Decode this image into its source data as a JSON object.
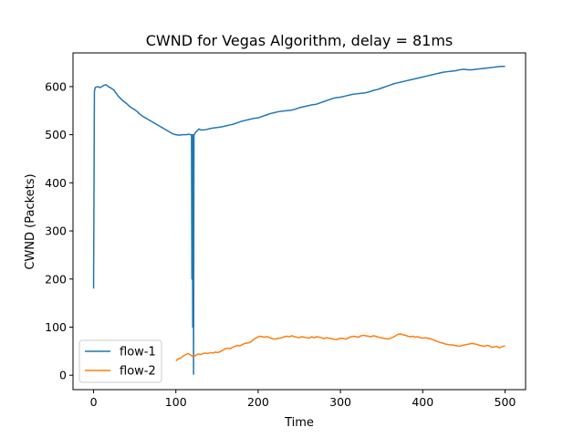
{
  "chart_data": {
    "type": "line",
    "title": "CWND for Vegas Algorithm, delay = 81ms",
    "xlabel": "Time",
    "ylabel": "CWND (Packets)",
    "xlim": [
      -25,
      525
    ],
    "ylim": [
      -30,
      670
    ],
    "xticks": [
      0,
      100,
      200,
      300,
      400,
      500
    ],
    "yticks": [
      0,
      100,
      200,
      300,
      400,
      500,
      600
    ],
    "grid": false,
    "legend_position": "lower-left",
    "series": [
      {
        "name": "flow-1",
        "color": "#1f77b4",
        "points": [
          [
            0,
            180
          ],
          [
            1,
            590
          ],
          [
            2,
            598
          ],
          [
            5,
            600
          ],
          [
            8,
            598
          ],
          [
            10,
            600
          ],
          [
            13,
            603
          ],
          [
            15,
            604
          ],
          [
            18,
            600
          ],
          [
            20,
            598
          ],
          [
            23,
            595
          ],
          [
            25,
            592
          ],
          [
            28,
            585
          ],
          [
            30,
            580
          ],
          [
            33,
            575
          ],
          [
            36,
            570
          ],
          [
            40,
            565
          ],
          [
            43,
            560
          ],
          [
            46,
            556
          ],
          [
            50,
            552
          ],
          [
            53,
            548
          ],
          [
            56,
            543
          ],
          [
            60,
            538
          ],
          [
            63,
            535
          ],
          [
            66,
            532
          ],
          [
            70,
            528
          ],
          [
            73,
            525
          ],
          [
            76,
            522
          ],
          [
            80,
            518
          ],
          [
            83,
            515
          ],
          [
            86,
            512
          ],
          [
            90,
            508
          ],
          [
            93,
            505
          ],
          [
            96,
            502
          ],
          [
            100,
            500
          ],
          [
            104,
            499
          ],
          [
            108,
            500
          ],
          [
            112,
            500
          ],
          [
            116,
            501
          ],
          [
            118,
            500
          ],
          [
            119,
            500
          ],
          [
            119.5,
            200
          ],
          [
            120,
            500
          ],
          [
            120.5,
            100
          ],
          [
            121,
            500
          ],
          [
            121.5,
            2
          ],
          [
            122,
            499
          ],
          [
            124,
            505
          ],
          [
            126,
            508
          ],
          [
            128,
            512
          ],
          [
            130,
            510
          ],
          [
            134,
            510
          ],
          [
            138,
            511
          ],
          [
            142,
            513
          ],
          [
            146,
            514
          ],
          [
            150,
            515
          ],
          [
            155,
            516
          ],
          [
            160,
            518
          ],
          [
            165,
            520
          ],
          [
            170,
            522
          ],
          [
            175,
            525
          ],
          [
            180,
            528
          ],
          [
            185,
            530
          ],
          [
            190,
            532
          ],
          [
            195,
            534
          ],
          [
            200,
            535
          ],
          [
            205,
            538
          ],
          [
            210,
            541
          ],
          [
            215,
            544
          ],
          [
            220,
            546
          ],
          [
            225,
            548
          ],
          [
            230,
            549
          ],
          [
            235,
            550
          ],
          [
            240,
            551
          ],
          [
            245,
            553
          ],
          [
            250,
            556
          ],
          [
            255,
            558
          ],
          [
            260,
            560
          ],
          [
            265,
            562
          ],
          [
            270,
            563
          ],
          [
            275,
            566
          ],
          [
            280,
            569
          ],
          [
            285,
            572
          ],
          [
            290,
            575
          ],
          [
            295,
            577
          ],
          [
            300,
            578
          ],
          [
            305,
            580
          ],
          [
            310,
            582
          ],
          [
            315,
            584
          ],
          [
            320,
            585
          ],
          [
            325,
            586
          ],
          [
            330,
            587
          ],
          [
            335,
            589
          ],
          [
            340,
            592
          ],
          [
            345,
            594
          ],
          [
            350,
            597
          ],
          [
            355,
            600
          ],
          [
            360,
            603
          ],
          [
            365,
            606
          ],
          [
            370,
            608
          ],
          [
            375,
            610
          ],
          [
            380,
            612
          ],
          [
            385,
            614
          ],
          [
            390,
            616
          ],
          [
            395,
            618
          ],
          [
            400,
            620
          ],
          [
            405,
            622
          ],
          [
            410,
            624
          ],
          [
            415,
            626
          ],
          [
            420,
            628
          ],
          [
            425,
            630
          ],
          [
            430,
            631
          ],
          [
            435,
            632
          ],
          [
            440,
            633
          ],
          [
            445,
            635
          ],
          [
            450,
            636
          ],
          [
            455,
            635
          ],
          [
            460,
            635
          ],
          [
            465,
            636
          ],
          [
            470,
            637
          ],
          [
            475,
            638
          ],
          [
            480,
            639
          ],
          [
            485,
            640
          ],
          [
            490,
            641
          ],
          [
            495,
            642
          ],
          [
            500,
            642
          ]
        ]
      },
      {
        "name": "flow-2",
        "color": "#ff7f0e",
        "points": [
          [
            100,
            30
          ],
          [
            103,
            34
          ],
          [
            106,
            36
          ],
          [
            109,
            40
          ],
          [
            112,
            43
          ],
          [
            115,
            45
          ],
          [
            118,
            42
          ],
          [
            121,
            38
          ],
          [
            124,
            41
          ],
          [
            127,
            44
          ],
          [
            130,
            43
          ],
          [
            133,
            45
          ],
          [
            136,
            46
          ],
          [
            139,
            45
          ],
          [
            142,
            47
          ],
          [
            145,
            46
          ],
          [
            148,
            48
          ],
          [
            151,
            47
          ],
          [
            154,
            49
          ],
          [
            157,
            52
          ],
          [
            160,
            55
          ],
          [
            163,
            56
          ],
          [
            166,
            55
          ],
          [
            169,
            58
          ],
          [
            172,
            60
          ],
          [
            175,
            62
          ],
          [
            178,
            61
          ],
          [
            181,
            64
          ],
          [
            184,
            66
          ],
          [
            187,
            67
          ],
          [
            190,
            68
          ],
          [
            193,
            72
          ],
          [
            196,
            76
          ],
          [
            199,
            79
          ],
          [
            202,
            81
          ],
          [
            205,
            80
          ],
          [
            208,
            79
          ],
          [
            211,
            80
          ],
          [
            214,
            78
          ],
          [
            217,
            76
          ],
          [
            220,
            75
          ],
          [
            223,
            76
          ],
          [
            226,
            77
          ],
          [
            229,
            78
          ],
          [
            232,
            80
          ],
          [
            235,
            81
          ],
          [
            238,
            80
          ],
          [
            241,
            82
          ],
          [
            244,
            80
          ],
          [
            247,
            79
          ],
          [
            250,
            78
          ],
          [
            253,
            80
          ],
          [
            256,
            79
          ],
          [
            259,
            78
          ],
          [
            262,
            77
          ],
          [
            265,
            80
          ],
          [
            268,
            78
          ],
          [
            271,
            80
          ],
          [
            274,
            79
          ],
          [
            277,
            78
          ],
          [
            280,
            76
          ],
          [
            283,
            78
          ],
          [
            286,
            77
          ],
          [
            289,
            76
          ],
          [
            292,
            75
          ],
          [
            295,
            74
          ],
          [
            298,
            76
          ],
          [
            301,
            77
          ],
          [
            304,
            76
          ],
          [
            307,
            75
          ],
          [
            310,
            78
          ],
          [
            313,
            80
          ],
          [
            316,
            81
          ],
          [
            319,
            80
          ],
          [
            322,
            79
          ],
          [
            325,
            82
          ],
          [
            328,
            83
          ],
          [
            331,
            82
          ],
          [
            334,
            81
          ],
          [
            337,
            80
          ],
          [
            340,
            82
          ],
          [
            343,
            81
          ],
          [
            346,
            79
          ],
          [
            349,
            78
          ],
          [
            352,
            77
          ],
          [
            355,
            76
          ],
          [
            358,
            75
          ],
          [
            361,
            77
          ],
          [
            364,
            79
          ],
          [
            367,
            82
          ],
          [
            370,
            85
          ],
          [
            373,
            86
          ],
          [
            376,
            84
          ],
          [
            379,
            83
          ],
          [
            382,
            81
          ],
          [
            385,
            80
          ],
          [
            388,
            81
          ],
          [
            391,
            79
          ],
          [
            394,
            80
          ],
          [
            397,
            78
          ],
          [
            400,
            77
          ],
          [
            403,
            78
          ],
          [
            406,
            77
          ],
          [
            409,
            76
          ],
          [
            412,
            74
          ],
          [
            415,
            72
          ],
          [
            418,
            70
          ],
          [
            421,
            68
          ],
          [
            424,
            67
          ],
          [
            427,
            65
          ],
          [
            430,
            64
          ],
          [
            433,
            63
          ],
          [
            436,
            63
          ],
          [
            439,
            62
          ],
          [
            442,
            61
          ],
          [
            445,
            60
          ],
          [
            448,
            62
          ],
          [
            451,
            63
          ],
          [
            454,
            64
          ],
          [
            457,
            65
          ],
          [
            460,
            66
          ],
          [
            463,
            65
          ],
          [
            466,
            64
          ],
          [
            469,
            62
          ],
          [
            472,
            61
          ],
          [
            475,
            60
          ],
          [
            478,
            62
          ],
          [
            481,
            61
          ],
          [
            484,
            58
          ],
          [
            487,
            59
          ],
          [
            490,
            60
          ],
          [
            493,
            57
          ],
          [
            496,
            59
          ],
          [
            500,
            61
          ]
        ]
      }
    ]
  }
}
